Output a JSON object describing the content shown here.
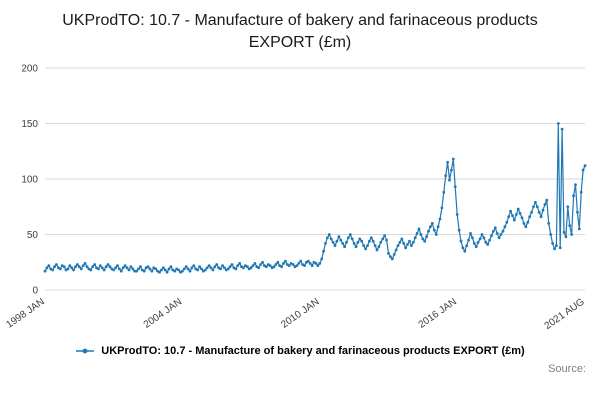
{
  "title": {
    "text": "UKProdTO: 10.7 - Manufacture of bakery and farinaceous products EXPORT (£m)"
  },
  "legend": {
    "label": "UKProdTO: 10.7 - Manufacture of bakery and farinaceous products EXPORT (£m)"
  },
  "source": {
    "label": "Source:"
  },
  "chart_data": {
    "type": "line",
    "title": "UKProdTO: 10.7 - Manufacture of bakery and farinaceous products EXPORT (£m)",
    "xlabel": "",
    "ylabel": "",
    "ylim": [
      0,
      200
    ],
    "y_ticks": [
      0,
      50,
      100,
      150,
      200
    ],
    "grid": true,
    "legend_position": "bottom",
    "x_tick_labels": [
      "1998 JAN",
      "2004 JAN",
      "2010 JAN",
      "2016 JAN",
      "2021 AUG"
    ],
    "x_tick_indices": [
      0,
      72,
      144,
      216,
      283
    ],
    "x_start": "1998 JAN",
    "x_end": "2021 AUG",
    "x_frequency": "monthly",
    "series": [
      {
        "name": "UKProdTO: 10.7 - Manufacture of bakery and farinaceous products EXPORT (£m)",
        "color": "#1f77b4",
        "values": [
          17,
          20,
          22,
          19,
          18,
          21,
          23,
          20,
          19,
          22,
          21,
          18,
          19,
          22,
          20,
          18,
          21,
          23,
          21,
          19,
          22,
          24,
          21,
          19,
          18,
          21,
          23,
          20,
          19,
          22,
          20,
          18,
          21,
          23,
          21,
          19,
          18,
          20,
          22,
          19,
          17,
          20,
          22,
          20,
          18,
          21,
          19,
          17,
          17,
          19,
          21,
          18,
          17,
          20,
          21,
          19,
          17,
          20,
          19,
          17,
          16,
          18,
          20,
          18,
          16,
          19,
          21,
          18,
          17,
          19,
          18,
          16,
          17,
          19,
          21,
          19,
          17,
          20,
          22,
          19,
          18,
          21,
          19,
          17,
          18,
          20,
          22,
          20,
          18,
          21,
          23,
          20,
          19,
          22,
          20,
          18,
          19,
          21,
          23,
          20,
          19,
          22,
          24,
          21,
          20,
          22,
          21,
          19,
          20,
          22,
          24,
          21,
          20,
          23,
          25,
          22,
          21,
          23,
          22,
          20,
          21,
          23,
          25,
          22,
          21,
          24,
          26,
          23,
          22,
          24,
          23,
          21,
          22,
          24,
          26,
          23,
          22,
          25,
          26,
          24,
          22,
          25,
          24,
          22,
          24,
          28,
          35,
          42,
          47,
          50,
          46,
          43,
          40,
          44,
          48,
          45,
          42,
          39,
          43,
          47,
          50,
          46,
          42,
          39,
          43,
          46,
          44,
          40,
          37,
          40,
          44,
          47,
          44,
          40,
          36,
          39,
          43,
          46,
          49,
          45,
          33,
          30,
          28,
          32,
          36,
          40,
          43,
          46,
          42,
          38,
          41,
          44,
          40,
          43,
          47,
          51,
          55,
          50,
          46,
          44,
          48,
          53,
          57,
          60,
          54,
          50,
          57,
          64,
          74,
          88,
          103,
          115,
          99,
          108,
          118,
          93,
          68,
          54,
          44,
          38,
          35,
          40,
          45,
          51,
          47,
          42,
          39,
          43,
          46,
          50,
          47,
          43,
          41,
          45,
          49,
          53,
          56,
          51,
          47,
          50,
          53,
          57,
          61,
          66,
          71,
          67,
          63,
          68,
          73,
          69,
          65,
          60,
          57,
          61,
          66,
          70,
          75,
          79,
          75,
          70,
          66,
          72,
          77,
          81,
          60,
          50,
          42,
          37,
          40,
          150,
          38,
          145,
          52,
          48,
          75,
          58,
          50,
          85,
          95,
          70,
          55,
          88,
          108,
          112
        ]
      }
    ]
  }
}
